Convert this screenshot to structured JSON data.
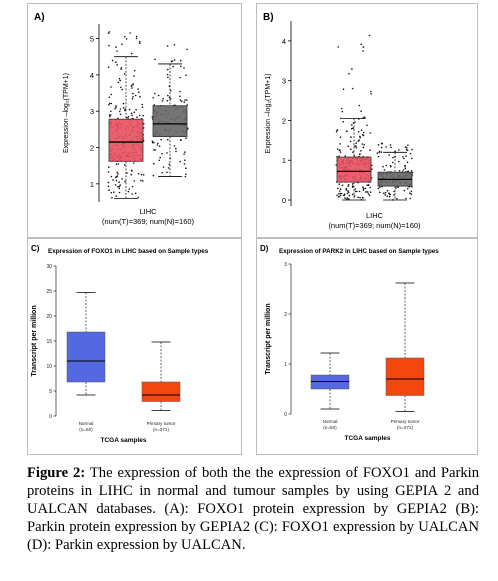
{
  "figure": {
    "caption": {
      "label": "Figure 2:",
      "text": "The expression of both the the expression of FOXO1 and Parkin proteins in LIHC in normal and tumour samples by using GEPIA 2 and UALCAN databases. (A): FOXO1 protein expression by GEPIA2 (B): Parkin protein expression by GEPIA2 (C): FOXO1 expression by UALCAN (D): Parkin expression by UALCAN."
    }
  },
  "chart_data": [
    {
      "panel": "A)",
      "type": "box",
      "title": "",
      "ylabel": "Expression –log₂(TPM+1)",
      "xlabel": "LIHC",
      "xnote": "(num(T)=369; num(N)=160)",
      "ylim": [
        0.5,
        5.4
      ],
      "yticks": [
        1,
        2,
        3,
        4,
        5
      ],
      "series": [
        {
          "group": "tumor",
          "color": "#e8505e",
          "min": 0.6,
          "q1": 1.62,
          "median": 2.15,
          "q3": 2.78,
          "max": 4.5,
          "outlier_max": 5.2,
          "n": 369
        },
        {
          "group": "normal",
          "color": "#666666",
          "min": 1.2,
          "q1": 2.3,
          "median": 2.65,
          "q3": 3.15,
          "max": 4.3,
          "outlier_max": 4.85,
          "n": 160
        }
      ]
    },
    {
      "panel": "B)",
      "type": "box",
      "title": "",
      "ylabel": "Expression –log₂(TPM+1)",
      "xlabel": "LIHC",
      "xnote": "(num(T)=369; num(N)=160)",
      "ylim": [
        -0.15,
        4.5
      ],
      "yticks": [
        0,
        1,
        2,
        3,
        4
      ],
      "series": [
        {
          "group": "tumor",
          "color": "#e8505e",
          "min": 0.0,
          "q1": 0.45,
          "median": 0.72,
          "q3": 1.08,
          "max": 2.05,
          "outlier_max": 4.35,
          "n": 369
        },
        {
          "group": "normal",
          "color": "#666666",
          "min": 0.0,
          "q1": 0.35,
          "median": 0.52,
          "q3": 0.7,
          "max": 1.2,
          "outlier_max": 1.45,
          "n": 160
        }
      ]
    },
    {
      "panel": "C)",
      "type": "box",
      "title": "Expression of FOXO1 in LIHC based on Sample types",
      "ylabel": "Transcript per million",
      "xlabel": "TCGA samples",
      "ylim": [
        0,
        30
      ],
      "yticks": [
        0,
        5,
        10,
        15,
        20,
        25,
        30
      ],
      "categories": [
        {
          "name": "Normal",
          "n": "(n=50)"
        },
        {
          "name": "Primary tumor",
          "n": "(n=371)"
        }
      ],
      "series": [
        {
          "group": "Normal",
          "color": "#5469e0",
          "min": 4.2,
          "q1": 6.8,
          "median": 11.0,
          "q3": 16.8,
          "max": 24.7
        },
        {
          "group": "Primary tumor",
          "color": "#f4460f",
          "min": 1.1,
          "q1": 2.9,
          "median": 4.2,
          "q3": 6.8,
          "max": 14.8
        }
      ]
    },
    {
      "panel": "D)",
      "type": "box",
      "title": "Expression of PARK2 in LIHC based on Sample types",
      "ylabel": "Transcript per million",
      "xlabel": "TCGA samples",
      "ylim": [
        0,
        3
      ],
      "yticks": [
        0,
        1,
        2,
        3
      ],
      "categories": [
        {
          "name": "Normal",
          "n": "(n=50)"
        },
        {
          "name": "Primary tumor",
          "n": "(n=371)"
        }
      ],
      "series": [
        {
          "group": "Normal",
          "color": "#5469e0",
          "min": 0.1,
          "q1": 0.5,
          "median": 0.65,
          "q3": 0.78,
          "max": 1.22
        },
        {
          "group": "Primary tumor",
          "color": "#f4460f",
          "min": 0.05,
          "q1": 0.37,
          "median": 0.7,
          "q3": 1.12,
          "max": 2.62
        }
      ]
    }
  ]
}
